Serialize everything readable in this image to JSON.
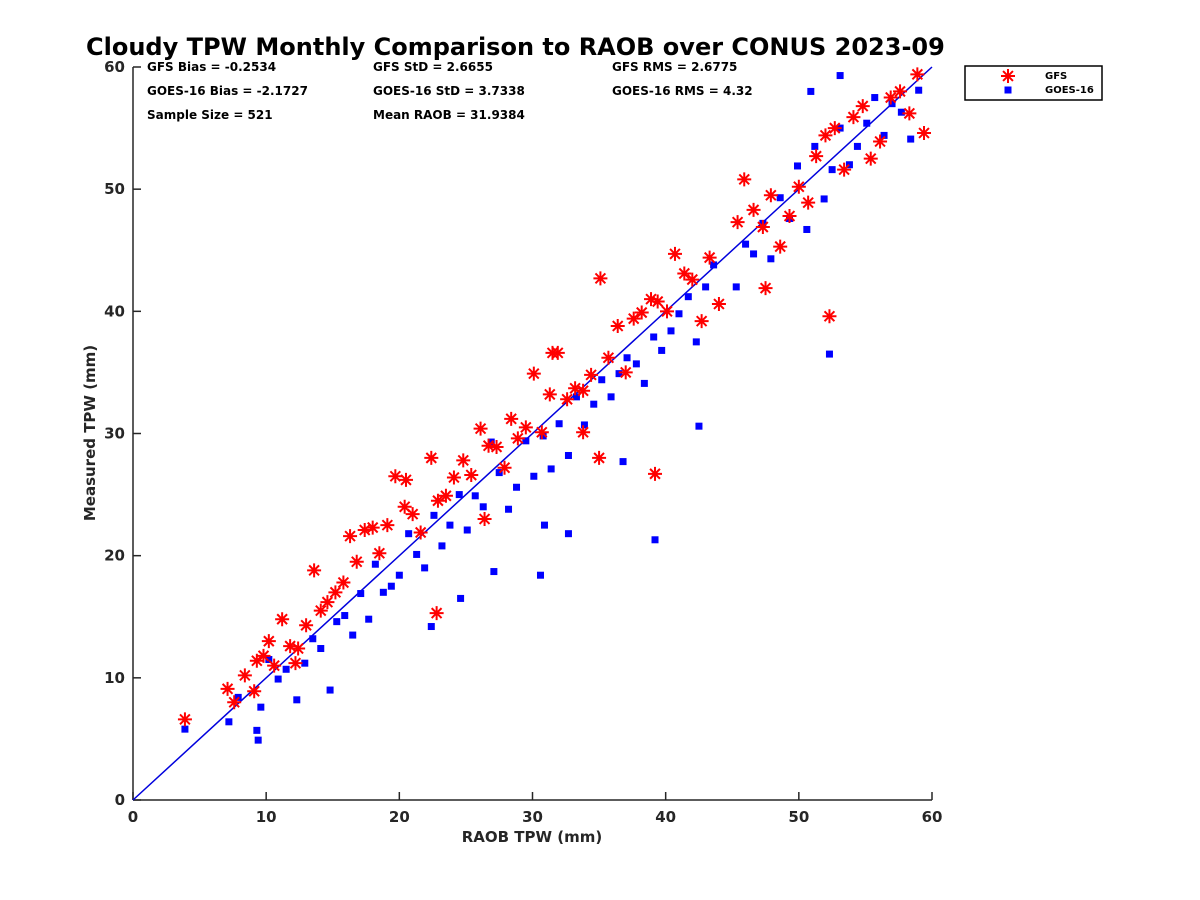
{
  "chart_data": {
    "type": "scatter",
    "title": "Cloudy TPW Monthly Comparison to RAOB over CONUS 2023-09",
    "xlabel": "RAOB TPW (mm)",
    "ylabel": "Measured TPW (mm)",
    "xlim": [
      0,
      60
    ],
    "ylim": [
      0,
      60
    ],
    "xticks": [
      "0",
      "10",
      "20",
      "30",
      "40",
      "50",
      "60"
    ],
    "yticks": [
      "0",
      "10",
      "20",
      "30",
      "40",
      "50",
      "60"
    ],
    "grid": false,
    "legend_position": "outside-top-right",
    "reference_line": {
      "name": "1:1 line",
      "x": [
        0,
        60
      ],
      "y": [
        0,
        60
      ],
      "color": "#0000dd"
    },
    "stats": {
      "gfs_bias": "GFS Bias = -0.2534",
      "goes_bias": "GOES-16 Bias = -2.1727",
      "sample_size": "Sample Size = 521",
      "gfs_std": "GFS StD = 2.6655",
      "goes_std": "GOES-16 StD = 3.7338",
      "mean_raob": "Mean RAOB = 31.9384",
      "gfs_rms": "GFS RMS = 2.6775",
      "goes_rms": "GOES-16 RMS = 4.32"
    },
    "series": [
      {
        "name": "GFS",
        "marker": "asterisk",
        "color": "#ff0000",
        "x": [
          3.9,
          7.1,
          7.6,
          8.4,
          9.1,
          9.3,
          9.8,
          10.2,
          10.6,
          11.2,
          11.8,
          12.4,
          13.0,
          13.6,
          14.1,
          14.6,
          15.2,
          15.8,
          16.3,
          16.8,
          17.4,
          18.0,
          18.5,
          19.1,
          19.7,
          20.4,
          21.0,
          21.6,
          22.4,
          22.9,
          23.5,
          24.1,
          24.8,
          25.4,
          26.1,
          26.7,
          27.3,
          27.9,
          28.4,
          28.9,
          29.5,
          30.1,
          30.7,
          31.3,
          31.9,
          32.6,
          33.2,
          33.8,
          34.4,
          35.1,
          35.7,
          36.4,
          37.0,
          37.6,
          38.2,
          38.9,
          39.4,
          40.1,
          40.7,
          41.4,
          42.0,
          42.7,
          43.3,
          44.0,
          45.4,
          45.9,
          46.6,
          47.3,
          47.9,
          48.6,
          49.3,
          50.0,
          50.7,
          51.3,
          52.0,
          52.7,
          53.4,
          54.1,
          54.8,
          55.4,
          56.1,
          56.9,
          57.6,
          58.3,
          58.9,
          59.4,
          39.2,
          52.3,
          35.0,
          47.5,
          33.8,
          26.4,
          20.5,
          12.2,
          31.5,
          22.8
        ],
        "y": [
          6.6,
          9.1,
          8.0,
          10.2,
          8.9,
          11.4,
          11.8,
          13.0,
          11.0,
          14.8,
          12.6,
          12.4,
          14.3,
          18.8,
          15.5,
          16.2,
          17.0,
          17.8,
          21.6,
          19.5,
          22.1,
          22.3,
          20.2,
          22.5,
          26.5,
          24.0,
          23.4,
          21.9,
          28.0,
          24.5,
          24.9,
          26.4,
          27.8,
          26.6,
          30.4,
          29.0,
          28.9,
          27.2,
          31.2,
          29.6,
          30.5,
          34.9,
          30.1,
          33.2,
          36.6,
          32.8,
          33.7,
          33.5,
          34.8,
          42.7,
          36.2,
          38.8,
          35.0,
          39.4,
          39.9,
          41.0,
          40.8,
          40.0,
          44.7,
          43.1,
          42.6,
          39.2,
          44.4,
          40.6,
          47.3,
          50.8,
          48.3,
          46.9,
          49.5,
          45.3,
          47.8,
          50.2,
          48.9,
          52.7,
          54.4,
          55.0,
          51.6,
          55.9,
          56.8,
          52.5,
          53.9,
          57.5,
          58.0,
          56.2,
          59.4,
          54.6,
          26.7,
          39.6,
          28.0,
          41.9,
          30.1,
          23.0,
          26.2,
          11.2,
          36.6,
          15.3
        ]
      },
      {
        "name": "GOES-16",
        "marker": "square",
        "color": "#0000ff",
        "x": [
          3.9,
          7.2,
          7.9,
          9.3,
          9.4,
          9.6,
          10.2,
          10.9,
          11.5,
          12.3,
          12.9,
          13.5,
          14.1,
          14.8,
          15.3,
          15.9,
          16.5,
          17.1,
          17.7,
          18.2,
          18.8,
          19.4,
          20.0,
          20.7,
          21.3,
          21.9,
          22.6,
          23.2,
          23.8,
          24.5,
          25.1,
          25.7,
          26.3,
          26.9,
          27.5,
          28.2,
          28.8,
          29.5,
          30.1,
          30.8,
          31.4,
          32.0,
          32.7,
          33.3,
          33.9,
          34.6,
          35.2,
          35.9,
          36.5,
          37.1,
          37.8,
          38.4,
          39.1,
          39.7,
          40.4,
          41.0,
          41.7,
          42.3,
          43.0,
          43.6,
          45.3,
          46.0,
          46.6,
          47.3,
          47.9,
          48.6,
          49.3,
          49.9,
          50.6,
          51.2,
          51.9,
          52.5,
          53.1,
          53.8,
          54.4,
          55.1,
          55.7,
          56.4,
          57.0,
          57.7,
          58.4,
          59.0,
          52.3,
          39.2,
          30.6,
          36.8,
          24.6,
          32.7,
          50.9,
          53.1,
          42.5,
          30.9,
          27.1,
          22.4
        ],
        "y": [
          5.8,
          6.4,
          8.4,
          5.7,
          4.9,
          7.6,
          11.5,
          9.9,
          10.7,
          8.2,
          11.2,
          13.2,
          12.4,
          9.0,
          14.6,
          15.1,
          13.5,
          16.9,
          14.8,
          19.3,
          17.0,
          17.5,
          18.4,
          21.8,
          20.1,
          19.0,
          23.3,
          20.8,
          22.5,
          25.0,
          22.1,
          24.9,
          24.0,
          29.3,
          26.8,
          23.8,
          25.6,
          29.4,
          26.5,
          29.8,
          27.1,
          30.8,
          28.2,
          33.0,
          30.7,
          32.4,
          34.4,
          33.0,
          34.9,
          36.2,
          35.7,
          34.1,
          37.9,
          36.8,
          38.4,
          39.8,
          41.2,
          37.5,
          42.0,
          43.8,
          42.0,
          45.5,
          44.7,
          47.2,
          44.3,
          49.3,
          47.6,
          51.9,
          46.7,
          53.5,
          49.2,
          51.6,
          55.0,
          52.0,
          53.5,
          55.4,
          57.5,
          54.4,
          57.0,
          56.3,
          54.1,
          58.1,
          36.5,
          21.3,
          18.4,
          27.7,
          16.5,
          21.8,
          58.0,
          59.3,
          30.6,
          22.5,
          18.7,
          14.2
        ]
      }
    ]
  }
}
